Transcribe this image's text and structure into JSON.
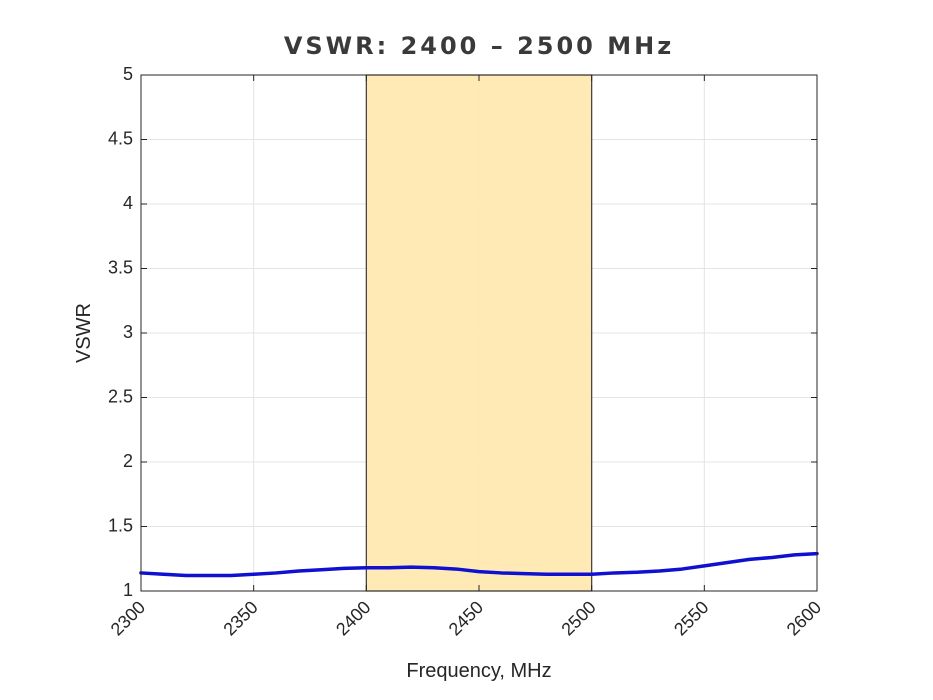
{
  "chart_data": {
    "type": "line",
    "title": "VSWR: 2400 – 2500 MHz",
    "xlabel": "Frequency, MHz",
    "ylabel": "VSWR",
    "xlim": [
      2300,
      2600
    ],
    "ylim": [
      1,
      5
    ],
    "xticks": [
      "2300",
      "2350",
      "2400",
      "2450",
      "2500",
      "2550",
      "2600"
    ],
    "yticks": [
      "1",
      "1.5",
      "2",
      "2.5",
      "3",
      "3.5",
      "4",
      "4.5",
      "5"
    ],
    "grid": true,
    "highlight_band": {
      "x": [
        2400,
        2500
      ],
      "color": "#ffe8b0",
      "edge_color": "#3a3a3a"
    },
    "series": [
      {
        "color": "#1010d0",
        "x": [
          2300,
          2310,
          2320,
          2330,
          2340,
          2350,
          2360,
          2370,
          2380,
          2390,
          2400,
          2410,
          2420,
          2430,
          2440,
          2450,
          2460,
          2470,
          2480,
          2490,
          2500,
          2510,
          2520,
          2530,
          2540,
          2550,
          2560,
          2570,
          2580,
          2590,
          2600
        ],
        "y": [
          1.14,
          1.13,
          1.12,
          1.12,
          1.12,
          1.13,
          1.14,
          1.155,
          1.165,
          1.175,
          1.18,
          1.18,
          1.185,
          1.18,
          1.17,
          1.15,
          1.14,
          1.135,
          1.13,
          1.13,
          1.13,
          1.14,
          1.145,
          1.155,
          1.17,
          1.195,
          1.22,
          1.245,
          1.26,
          1.28,
          1.29
        ]
      }
    ]
  }
}
